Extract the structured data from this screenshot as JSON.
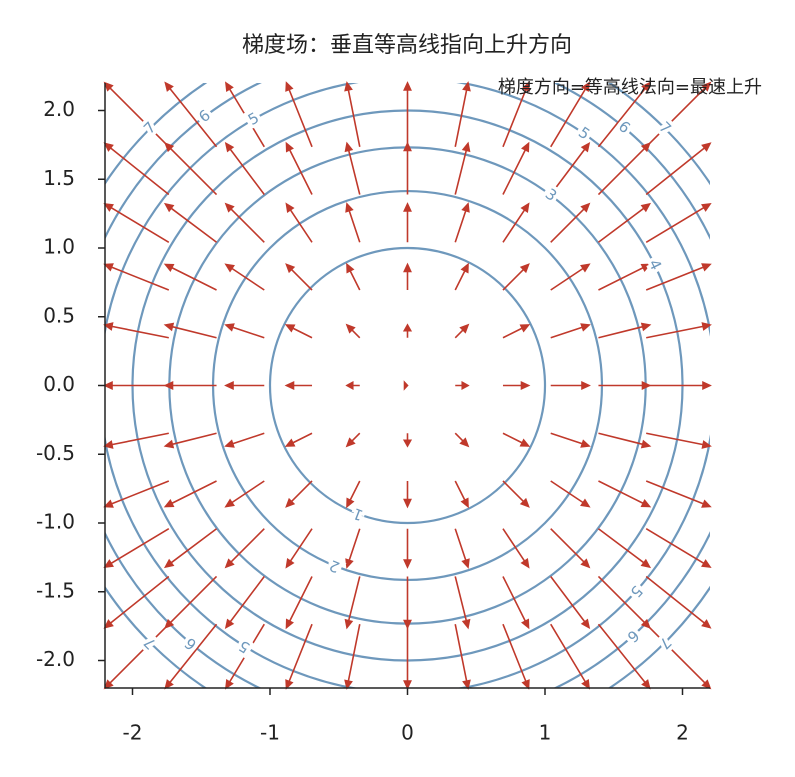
{
  "chart_data": {
    "type": "contour-quiver",
    "title": "梯度场：垂直等高线指向上升方向",
    "annotation": "梯度方向=等高线法向=最速上升",
    "xlim": [
      -2.2,
      2.2
    ],
    "ylim": [
      -2.2,
      2.2
    ],
    "xticks": [
      -2,
      -1,
      0,
      1,
      2
    ],
    "yticks": [
      {
        "value": -2,
        "label": "-2.0"
      },
      {
        "value": -1.5,
        "label": "-1.5"
      },
      {
        "value": -1,
        "label": "-1.0"
      },
      {
        "value": -0.5,
        "label": "-0.5"
      },
      {
        "value": 0,
        "label": "0.0"
      },
      {
        "value": 0.5,
        "label": "0.5"
      },
      {
        "value": 1,
        "label": "1.0"
      },
      {
        "value": 1.5,
        "label": "1.5"
      },
      {
        "value": 2,
        "label": "2.0"
      }
    ],
    "contour": {
      "levels": [
        1,
        2,
        3,
        4,
        5,
        6,
        7
      ],
      "color": "#6e98bc"
    },
    "quiver": {
      "color": "#c0392b",
      "x": [
        -2.2,
        -1.76,
        -1.32,
        -0.88,
        -0.44,
        0,
        0.44,
        0.88,
        1.32,
        1.76,
        2.2
      ],
      "y": [
        -2.2,
        -1.76,
        -1.32,
        -0.88,
        -0.44,
        0,
        0.44,
        0.88,
        1.32,
        1.76,
        2.2
      ],
      "u": [
        [
          -4.4,
          -3.52,
          -2.64,
          -1.76,
          -0.88,
          0,
          0.88,
          1.76,
          2.64,
          3.52,
          4.4
        ],
        [
          -4.4,
          -3.52,
          -2.64,
          -1.76,
          -0.88,
          0,
          0.88,
          1.76,
          2.64,
          3.52,
          4.4
        ],
        [
          -4.4,
          -3.52,
          -2.64,
          -1.76,
          -0.88,
          0,
          0.88,
          1.76,
          2.64,
          3.52,
          4.4
        ],
        [
          -4.4,
          -3.52,
          -2.64,
          -1.76,
          -0.88,
          0,
          0.88,
          1.76,
          2.64,
          3.52,
          4.4
        ],
        [
          -4.4,
          -3.52,
          -2.64,
          -1.76,
          -0.88,
          0,
          0.88,
          1.76,
          2.64,
          3.52,
          4.4
        ],
        [
          -4.4,
          -3.52,
          -2.64,
          -1.76,
          -0.88,
          0,
          0.88,
          1.76,
          2.64,
          3.52,
          4.4
        ],
        [
          -4.4,
          -3.52,
          -2.64,
          -1.76,
          -0.88,
          0,
          0.88,
          1.76,
          2.64,
          3.52,
          4.4
        ],
        [
          -4.4,
          -3.52,
          -2.64,
          -1.76,
          -0.88,
          0,
          0.88,
          1.76,
          2.64,
          3.52,
          4.4
        ],
        [
          -4.4,
          -3.52,
          -2.64,
          -1.76,
          -0.88,
          0,
          0.88,
          1.76,
          2.64,
          3.52,
          4.4
        ],
        [
          -4.4,
          -3.52,
          -2.64,
          -1.76,
          -0.88,
          0,
          0.88,
          1.76,
          2.64,
          3.52,
          4.4
        ],
        [
          -4.4,
          -3.52,
          -2.64,
          -1.76,
          -0.88,
          0,
          0.88,
          1.76,
          2.64,
          3.52,
          4.4
        ]
      ],
      "v": [
        [
          -4.4,
          -4.4,
          -4.4,
          -4.4,
          -4.4,
          -4.4,
          -4.4,
          -4.4,
          -4.4,
          -4.4,
          -4.4
        ],
        [
          -3.52,
          -3.52,
          -3.52,
          -3.52,
          -3.52,
          -3.52,
          -3.52,
          -3.52,
          -3.52,
          -3.52,
          -3.52
        ],
        [
          -2.64,
          -2.64,
          -2.64,
          -2.64,
          -2.64,
          -2.64,
          -2.64,
          -2.64,
          -2.64,
          -2.64,
          -2.64
        ],
        [
          -1.76,
          -1.76,
          -1.76,
          -1.76,
          -1.76,
          -1.76,
          -1.76,
          -1.76,
          -1.76,
          -1.76,
          -1.76
        ],
        [
          -0.88,
          -0.88,
          -0.88,
          -0.88,
          -0.88,
          -0.88,
          -0.88,
          -0.88,
          -0.88,
          -0.88,
          -0.88
        ],
        [
          0,
          0,
          0,
          0,
          0,
          0,
          0,
          0,
          0,
          0,
          0
        ],
        [
          0.88,
          0.88,
          0.88,
          0.88,
          0.88,
          0.88,
          0.88,
          0.88,
          0.88,
          0.88,
          0.88
        ],
        [
          1.76,
          1.76,
          1.76,
          1.76,
          1.76,
          1.76,
          1.76,
          1.76,
          1.76,
          1.76,
          1.76
        ],
        [
          2.64,
          2.64,
          2.64,
          2.64,
          2.64,
          2.64,
          2.64,
          2.64,
          2.64,
          2.64,
          2.64
        ],
        [
          3.52,
          3.52,
          3.52,
          3.52,
          3.52,
          3.52,
          3.52,
          3.52,
          3.52,
          3.52,
          3.52
        ],
        [
          4.4,
          4.4,
          4.4,
          4.4,
          4.4,
          4.4,
          4.4,
          4.4,
          4.4,
          4.4,
          4.4
        ]
      ]
    }
  }
}
